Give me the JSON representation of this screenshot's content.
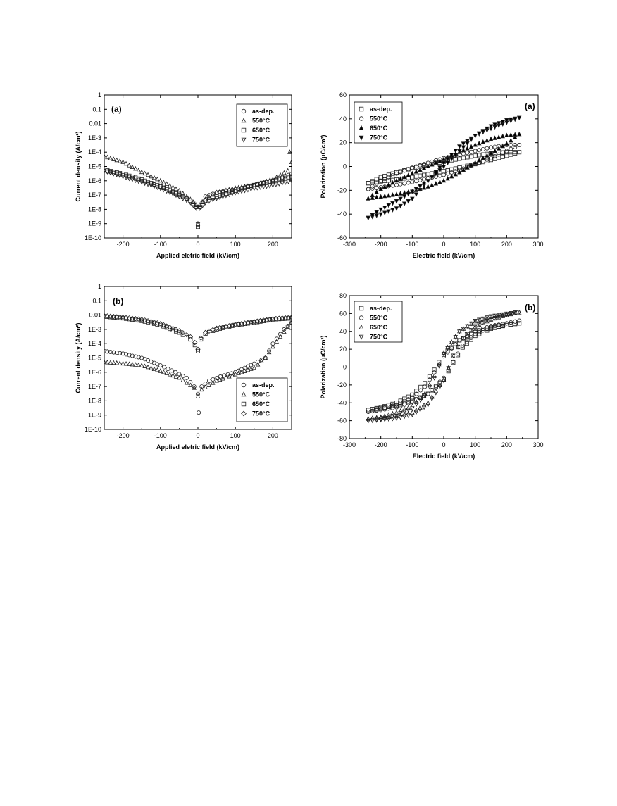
{
  "chart_data": [
    {
      "id": "jv_a",
      "type": "scatter",
      "panel_label": "(a)",
      "xlabel": "Applied eletric field (kV/cm)",
      "ylabel": "Current density (A/cm²)",
      "yscale": "log",
      "xlim": [
        -250,
        250
      ],
      "ylim": [
        1e-10,
        1
      ],
      "x_ticks": [
        -200,
        -100,
        0,
        100,
        200
      ],
      "y_ticks": [
        1e-10,
        1e-09,
        1e-08,
        1e-07,
        1e-06,
        1e-05,
        0.0001,
        0.001,
        0.01,
        0.1,
        1
      ],
      "y_tick_labels": [
        "1E-10",
        "1E-9",
        "1E-8",
        "1E-7",
        "1E-6",
        "1E-5",
        "1E-4",
        "1E-3",
        "0.01",
        "0.1",
        "1"
      ],
      "legend_position": "top-right",
      "series": [
        {
          "name": "as-dep.",
          "marker": "circle",
          "x": [
            -250,
            -200,
            -150,
            -100,
            -50,
            -20,
            -5,
            0,
            5,
            20,
            50,
            100,
            150,
            200,
            250
          ],
          "y": [
            5e-06,
            2.5e-06,
            1e-06,
            4e-07,
            1.2e-07,
            4e-08,
            1.5e-08,
            8e-10,
            1.5e-08,
            8e-08,
            1.5e-07,
            2.5e-07,
            5e-07,
            1e-06,
            3e-06
          ]
        },
        {
          "name": "550°C",
          "marker": "triangle-up",
          "x": [
            -250,
            -200,
            -150,
            -100,
            -50,
            -20,
            -5,
            0,
            5,
            20,
            50,
            100,
            150,
            200,
            240,
            245,
            250
          ],
          "y": [
            5e-05,
            2e-05,
            4e-06,
            1e-06,
            2e-07,
            5e-08,
            2e-08,
            1e-09,
            2e-08,
            5e-08,
            1.5e-07,
            3e-07,
            5e-07,
            1.2e-06,
            5e-06,
            0.0001,
            2e-05
          ]
        },
        {
          "name": "650°C",
          "marker": "square",
          "x": [
            -250,
            -200,
            -150,
            -100,
            -50,
            -20,
            -5,
            0,
            5,
            20,
            50,
            100,
            150,
            200,
            250
          ],
          "y": [
            6e-06,
            3e-06,
            1.2e-06,
            4e-07,
            1e-07,
            4e-08,
            1.5e-08,
            6e-10,
            1.5e-08,
            4e-08,
            8e-08,
            2e-07,
            5e-07,
            1e-06,
            2e-06
          ]
        },
        {
          "name": "750°C",
          "marker": "triangle-down",
          "x": [
            -250,
            -200,
            -150,
            -100,
            -50,
            -20,
            -5,
            0,
            5,
            20,
            50,
            100,
            150,
            200,
            250
          ],
          "y": [
            5e-06,
            2e-06,
            8e-07,
            3e-07,
            8e-08,
            3e-08,
            1.2e-08,
            9e-10,
            1.2e-08,
            3e-08,
            6e-08,
            1.5e-07,
            3e-07,
            5e-07,
            1e-06
          ]
        }
      ]
    },
    {
      "id": "pe_a",
      "type": "scatter",
      "panel_label": "(a)",
      "xlabel": "Electric field (kV/cm)",
      "ylabel": "Polarization (μC/cm²)",
      "xlim": [
        -300,
        300
      ],
      "ylim": [
        -60,
        60
      ],
      "x_ticks": [
        -300,
        -200,
        -100,
        0,
        100,
        200,
        300
      ],
      "y_ticks": [
        -60,
        -40,
        -20,
        0,
        20,
        40,
        60
      ],
      "legend_position": "top-left",
      "series": [
        {
          "name": "as-dep.",
          "marker": "square",
          "filled": false,
          "x": [
            -240,
            -200,
            -150,
            -100,
            -50,
            0,
            50,
            100,
            150,
            200,
            240,
            200,
            150,
            100,
            50,
            0,
            -50,
            -100,
            -150,
            -200,
            -240
          ],
          "y": [
            -14,
            -12.5,
            -11,
            -9,
            -6.5,
            -4,
            -1,
            2,
            5.5,
            9,
            12,
            12,
            11,
            9,
            6.5,
            4,
            1.5,
            -1.5,
            -5,
            -9,
            -14
          ]
        },
        {
          "name": "550°C",
          "marker": "circle",
          "filled": false,
          "x": [
            -240,
            -200,
            -150,
            -100,
            -50,
            0,
            50,
            100,
            150,
            200,
            240,
            200,
            150,
            100,
            50,
            0,
            -50,
            -100,
            -150,
            -200,
            -240
          ],
          "y": [
            -19,
            -17.5,
            -15.5,
            -13,
            -10,
            -7,
            -3,
            2,
            7,
            13,
            18,
            18,
            16,
            13,
            10,
            7,
            3,
            -1,
            -6,
            -12,
            -19
          ]
        },
        {
          "name": "650°C",
          "marker": "triangle-up",
          "filled": true,
          "x": [
            -240,
            -200,
            -150,
            -100,
            -50,
            0,
            50,
            100,
            150,
            200,
            240,
            200,
            150,
            100,
            50,
            0,
            -50,
            -100,
            -150,
            -200,
            -240
          ],
          "y": [
            -27,
            -25.5,
            -23.5,
            -21,
            -17,
            -12,
            -5,
            3,
            11,
            19,
            27,
            26,
            23,
            18,
            12,
            6,
            0,
            -6,
            -12,
            -19,
            -27
          ]
        },
        {
          "name": "750°C",
          "marker": "triangle-down",
          "filled": true,
          "x": [
            -240,
            -200,
            -150,
            -100,
            -50,
            0,
            50,
            100,
            150,
            200,
            240,
            200,
            150,
            100,
            50,
            0,
            -50,
            -100,
            -150,
            -200,
            -240
          ],
          "y": [
            -43,
            -40,
            -35,
            -27,
            -12,
            3,
            17,
            26,
            32,
            37,
            41,
            39,
            34,
            26,
            13,
            0,
            -12,
            -21,
            -29,
            -36,
            -43
          ]
        }
      ]
    },
    {
      "id": "jv_b",
      "type": "scatter",
      "panel_label": "(b)",
      "xlabel": "Applied eletric field (kV/cm)",
      "ylabel": "Current density (A/cm²)",
      "yscale": "log",
      "xlim": [
        -250,
        250
      ],
      "ylim": [
        1e-10,
        1
      ],
      "x_ticks": [
        -200,
        -100,
        0,
        100,
        200
      ],
      "y_ticks": [
        1e-10,
        1e-09,
        1e-08,
        1e-07,
        1e-06,
        1e-05,
        0.0001,
        0.001,
        0.01,
        0.1,
        1
      ],
      "y_tick_labels": [
        "1E-10",
        "1E-9",
        "1E-8",
        "1E-7",
        "1E-6",
        "1E-5",
        "1E-4",
        "1E-3",
        "0.01",
        "0.1",
        "1"
      ],
      "legend_position": "bottom-right",
      "series": [
        {
          "name": "as-dep.",
          "marker": "circle",
          "x": [
            -250,
            -200,
            -150,
            -100,
            -60,
            -30,
            -10,
            0,
            2,
            10,
            30,
            60,
            100,
            150,
            180,
            200,
            230,
            250
          ],
          "y": [
            3e-05,
            2e-05,
            1e-05,
            3e-06,
            1e-06,
            4e-07,
            1e-07,
            3e-08,
            1.5e-09,
            1e-07,
            2.5e-07,
            5e-07,
            1e-06,
            4e-06,
            1e-05,
            0.0001,
            0.001,
            0.003
          ]
        },
        {
          "name": "550°C",
          "marker": "triangle-up",
          "x": [
            -250,
            -200,
            -150,
            -100,
            -50,
            -10,
            0,
            10,
            50,
            100,
            150,
            180,
            200,
            220,
            240,
            250
          ],
          "y": [
            5e-06,
            4e-06,
            3e-06,
            1.2e-06,
            4e-07,
            8e-08,
            2e-08,
            6e-08,
            2.5e-07,
            7e-07,
            2e-06,
            1e-05,
            6e-05,
            0.0003,
            0.0015,
            0.003
          ]
        },
        {
          "name": "650°C",
          "marker": "square",
          "x": [
            -250,
            -200,
            -150,
            -100,
            -50,
            -20,
            -8,
            0,
            8,
            20,
            50,
            100,
            150,
            200,
            250
          ],
          "y": [
            0.008,
            0.006,
            0.004,
            0.002,
            0.0006,
            0.0002,
            8e-05,
            3e-05,
            0.0002,
            0.0005,
            0.001,
            0.002,
            0.003,
            0.005,
            0.006
          ]
        },
        {
          "name": "750°C",
          "marker": "diamond",
          "x": [
            -250,
            -200,
            -150,
            -100,
            -50,
            -20,
            -8,
            0,
            8,
            20,
            50,
            100,
            150,
            200,
            250
          ],
          "y": [
            0.009,
            0.007,
            0.005,
            0.0025,
            0.0008,
            0.0003,
            0.00012,
            4e-05,
            0.00025,
            0.0006,
            0.0012,
            0.0022,
            0.0035,
            0.0055,
            0.007
          ]
        }
      ]
    },
    {
      "id": "pe_b",
      "type": "scatter",
      "panel_label": "(b)",
      "xlabel": "Electric field (kV/cm)",
      "ylabel": "Polarization (μC/cm²)",
      "xlim": [
        -300,
        300
      ],
      "ylim": [
        -80,
        80
      ],
      "x_ticks": [
        -300,
        -200,
        -100,
        0,
        100,
        200,
        300
      ],
      "y_ticks": [
        -80,
        -60,
        -40,
        -20,
        0,
        20,
        40,
        60,
        80
      ],
      "legend_position": "top-left",
      "series": [
        {
          "name": "as-dep.",
          "marker": "square",
          "x": [
            -240,
            -200,
            -150,
            -100,
            -60,
            -30,
            0,
            50,
            100,
            150,
            200,
            240,
            200,
            150,
            100,
            60,
            30,
            0,
            -50,
            -100,
            -150,
            -200,
            -240
          ],
          "y": [
            -48,
            -45,
            -40,
            -31,
            -18,
            -3,
            14,
            30,
            39,
            44,
            47,
            49,
            47,
            43,
            35,
            22,
            5,
            -14,
            -30,
            -38,
            -43,
            -46,
            -48
          ]
        },
        {
          "name": "550°C",
          "marker": "circle",
          "x": [
            -240,
            -200,
            -150,
            -100,
            -60,
            -30,
            0,
            50,
            100,
            150,
            200,
            240,
            200,
            150,
            100,
            60,
            30,
            0,
            -50,
            -100,
            -150,
            -200,
            -240
          ],
          "y": [
            -50,
            -47,
            -42,
            -34,
            -22,
            -6,
            12,
            30,
            40,
            46,
            49,
            52,
            49,
            45,
            37,
            24,
            6,
            -12,
            -30,
            -39,
            -45,
            -48,
            -50
          ]
        },
        {
          "name": "650°C",
          "marker": "triangle-up",
          "x": [
            -240,
            -200,
            -150,
            -100,
            -60,
            -30,
            0,
            50,
            100,
            150,
            200,
            240,
            200,
            150,
            100,
            60,
            30,
            0,
            -50,
            -100,
            -150,
            -200,
            -240
          ],
          "y": [
            -58,
            -56,
            -51,
            -44,
            -30,
            -10,
            16,
            40,
            51,
            56,
            59,
            61,
            58,
            53,
            45,
            32,
            12,
            -14,
            -40,
            -51,
            -55,
            -57,
            -58
          ]
        },
        {
          "name": "750°C",
          "marker": "triangle-down",
          "x": [
            -240,
            -200,
            -150,
            -100,
            -60,
            -30,
            0,
            50,
            100,
            150,
            200,
            240,
            200,
            150,
            100,
            60,
            30,
            0,
            -50,
            -100,
            -150,
            -200,
            -240
          ],
          "y": [
            -60,
            -58,
            -53,
            -46,
            -32,
            -12,
            15,
            40,
            52,
            57,
            60,
            62,
            59,
            54,
            46,
            33,
            13,
            -15,
            -42,
            -53,
            -57,
            -59,
            -60
          ]
        }
      ]
    }
  ]
}
